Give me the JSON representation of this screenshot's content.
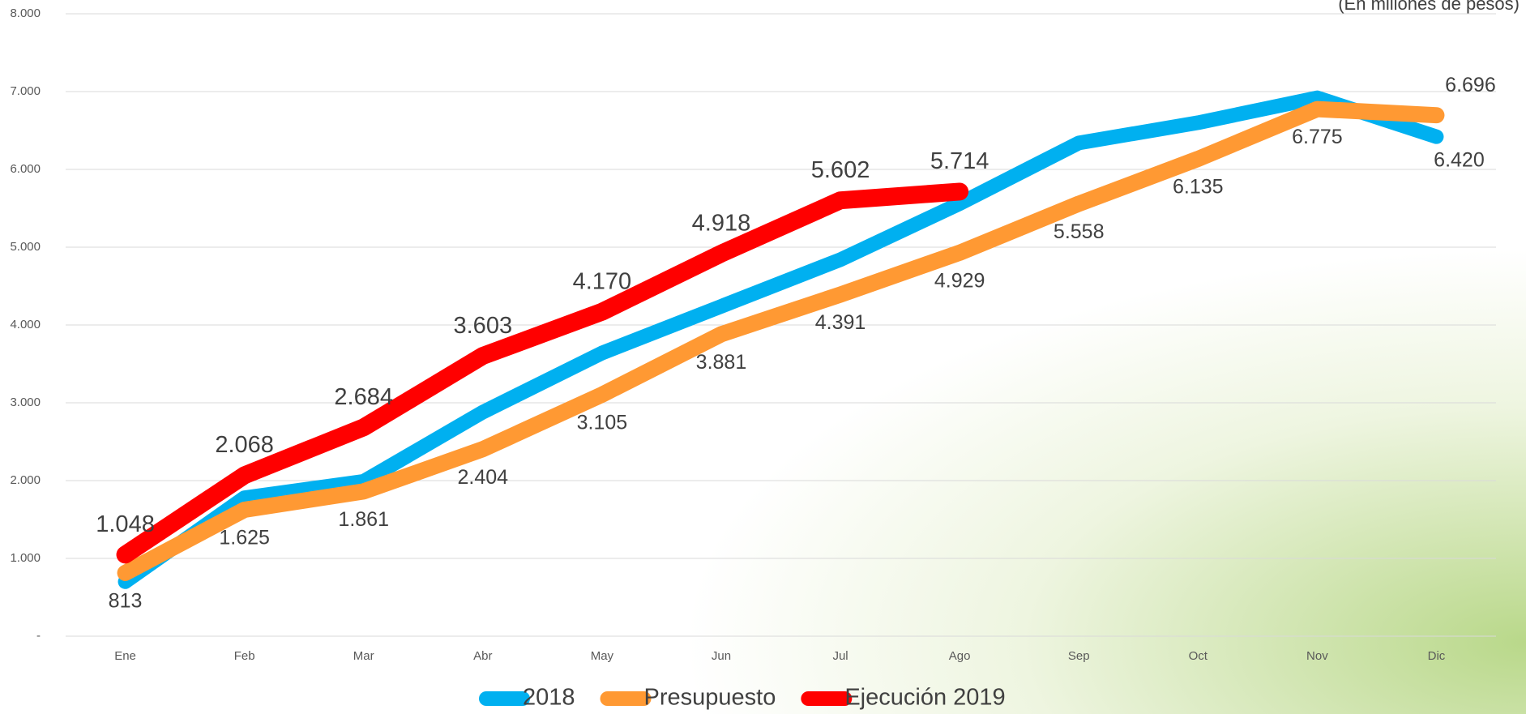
{
  "chart_data": {
    "type": "line",
    "subtitle": "(En millones de pesos)",
    "categories": [
      "Ene",
      "Feb",
      "Mar",
      "Abr",
      "May",
      "Jun",
      "Jul",
      "Ago",
      "Sep",
      "Oct",
      "Nov",
      "Dic"
    ],
    "ylim": [
      0,
      8000
    ],
    "yticks": [
      {
        "value": 0,
        "label": "-"
      },
      {
        "value": 1000,
        "label": "1.000"
      },
      {
        "value": 2000,
        "label": "2.000"
      },
      {
        "value": 3000,
        "label": "3.000"
      },
      {
        "value": 4000,
        "label": "4.000"
      },
      {
        "value": 5000,
        "label": "5.000"
      },
      {
        "value": 6000,
        "label": "6.000"
      },
      {
        "value": 7000,
        "label": "7.000"
      },
      {
        "value": 8000,
        "label": "8.000"
      }
    ],
    "grid": true,
    "legend": "bottom",
    "series": [
      {
        "name": "2018",
        "color": "#00b0f0",
        "values": [
          700,
          1780,
          1990,
          2880,
          3640,
          4240,
          4840,
          5560,
          6340,
          6600,
          6920,
          6420
        ],
        "value_labels": [
          null,
          null,
          null,
          null,
          null,
          null,
          null,
          null,
          null,
          null,
          null,
          "6.420"
        ]
      },
      {
        "name": "Presupuesto",
        "color": "#ff9933",
        "values": [
          813,
          1625,
          1861,
          2404,
          3105,
          3881,
          4391,
          4929,
          5558,
          6135,
          6775,
          6696
        ],
        "value_labels": [
          "813",
          "1.625",
          "1.861",
          "2.404",
          "3.105",
          "3.881",
          "4.391",
          "4.929",
          "5.558",
          "6.135",
          "6.775",
          "6.696"
        ]
      },
      {
        "name": "Ejecución 2019",
        "color": "#ff0000",
        "values": [
          1048,
          2068,
          2684,
          3603,
          4170,
          4918,
          5602,
          5714,
          null,
          null,
          null,
          null
        ],
        "value_labels": [
          "1.048",
          "2.068",
          "2.684",
          "3.603",
          "4.170",
          "4.918",
          "5.602",
          "5.714",
          null,
          null,
          null,
          null
        ]
      }
    ]
  }
}
